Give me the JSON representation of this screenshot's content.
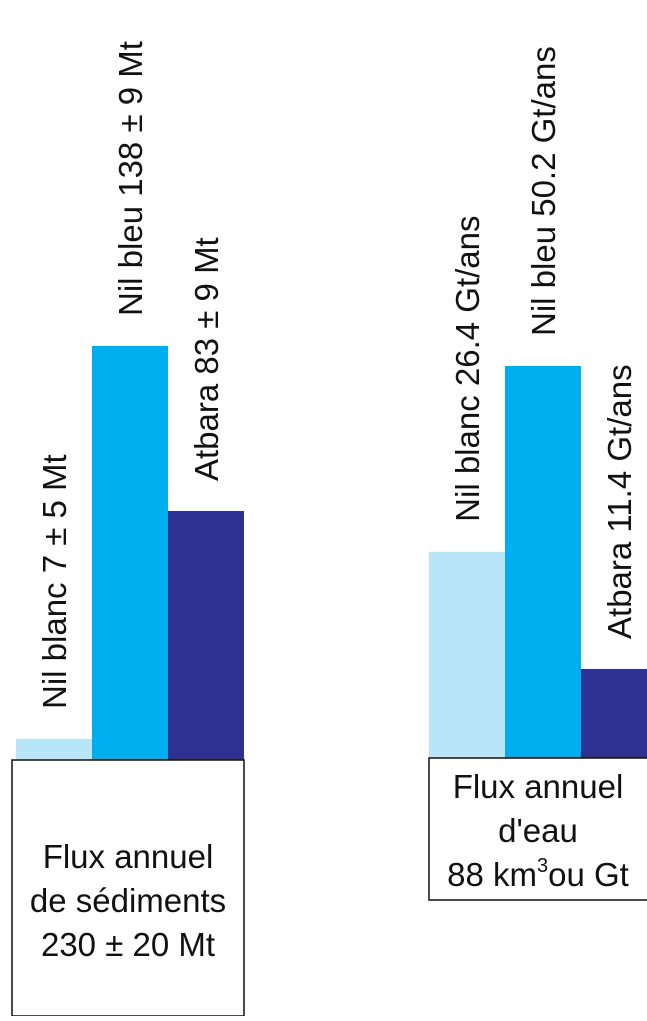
{
  "chart_data": [
    {
      "type": "bar",
      "categories": [
        "Nil blanc",
        "Nil bleu",
        "Atbara"
      ],
      "values": [
        7,
        138,
        83
      ],
      "bar_labels": [
        "Nil blanc 7 ± 5 Mt",
        "Nil bleu 138 ± 9 Mt",
        "Atbara 83 ± 9 Mt"
      ],
      "colors": [
        "#b9e5f8",
        "#00aeef",
        "#2e3192"
      ],
      "caption_lines": [
        "Flux annuel",
        "de sédiments",
        "230 ± 20 Mt"
      ],
      "unit": "Mt"
    },
    {
      "type": "bar",
      "categories": [
        "Nil blanc",
        "Nil bleu",
        "Atbara"
      ],
      "values": [
        26.4,
        50.2,
        11.4
      ],
      "bar_labels": [
        "Nil blanc 26.4 Gt/ans",
        "Nil bleu 50.2 Gt/ans",
        "Atbara 11.4 Gt/ans"
      ],
      "colors": [
        "#b9e5f8",
        "#00aeef",
        "#2e3192"
      ],
      "caption_lines": [
        "Flux annuel",
        "d'eau"
      ],
      "caption_total": {
        "number": "88",
        "unit": "km",
        "exponent": "3",
        "suffix": "ou Gt"
      },
      "unit": "Gt/ans"
    }
  ]
}
